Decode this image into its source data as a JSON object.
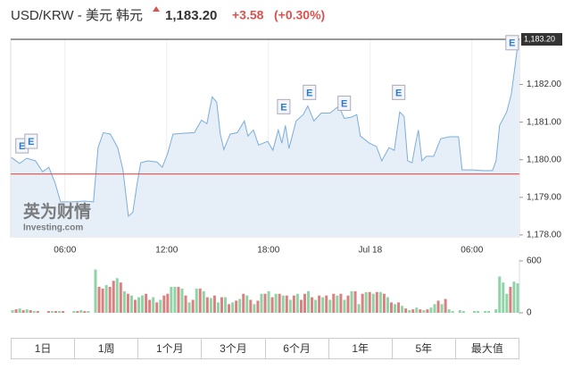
{
  "header": {
    "title": "USD/KRW - 美元 韩元",
    "change": "+3.58",
    "change_pct": "(+0.30%)"
  },
  "chart_data": [
    {
      "type": "area",
      "x": [
        2.84,
        3.32,
        3.74,
        4.26,
        4.68,
        5.05,
        5.42,
        5.74,
        6.37,
        7.16,
        7.68,
        7.95,
        8.26,
        8.68,
        9.11,
        9.42,
        9.74,
        10.0,
        10.26,
        10.47,
        10.89,
        11.42,
        11.74,
        12.05,
        12.37,
        12.89,
        13.63,
        14.05,
        14.37,
        14.68,
        14.95,
        15.16,
        15.37,
        15.74,
        16.16,
        16.58,
        16.79,
        17.11,
        17.42,
        17.95,
        18.26,
        18.58,
        18.79,
        19.0,
        19.21,
        19.63,
        20.05,
        20.32,
        20.68,
        21.11,
        21.63,
        22.16,
        22.47,
        22.89,
        23.21,
        23.42,
        23.95,
        24.37,
        24.68,
        25.11,
        25.42,
        25.74,
        26.0,
        26.21,
        26.47,
        26.68,
        26.84,
        27.05,
        27.32,
        27.74,
        28.16,
        28.68,
        29.21,
        29.42,
        30.05,
        30.68,
        31.21,
        31.42,
        31.63,
        32.05,
        32.32,
        32.53,
        32.74
      ],
      "series": [
        {
          "color": "#7aaedb",
          "fill": "#e6eef7",
          "values": [
            1180.06,
            1179.9,
            1180.04,
            1179.97,
            1179.68,
            1179.8,
            1179.38,
            1178.88,
            1178.88,
            1178.9,
            1178.88,
            1180.32,
            1180.72,
            1180.68,
            1180.32,
            1179.73,
            1178.5,
            1178.6,
            1179.38,
            1179.92,
            1179.97,
            1179.94,
            1179.8,
            1180.16,
            1180.68,
            1180.7,
            1180.72,
            1181.05,
            1180.96,
            1181.67,
            1181.53,
            1180.68,
            1180.27,
            1180.68,
            1180.72,
            1181.03,
            1180.63,
            1180.79,
            1180.39,
            1180.49,
            1180.25,
            1180.79,
            1180.44,
            1180.91,
            1180.3,
            1181.03,
            1181.2,
            1181.43,
            1181.03,
            1181.24,
            1181.24,
            1181.43,
            1181.1,
            1181.13,
            1181.2,
            1180.63,
            1180.44,
            1180.35,
            1179.97,
            1180.32,
            1180.25,
            1181.27,
            1181.15,
            1179.97,
            1179.92,
            1180.44,
            1180.79,
            1179.97,
            1180.09,
            1180.09,
            1180.56,
            1180.61,
            1180.61,
            1179.73,
            1179.73,
            1179.71,
            1179.71,
            1179.97,
            1180.91,
            1181.27,
            1181.74,
            1182.45,
            1183.2
          ]
        }
      ],
      "xlim": [
        2.8,
        32.8
      ],
      "ylim": [
        1177.95,
        1183.2
      ],
      "xticks": [
        {
          "value": 6,
          "label": "06:00"
        },
        {
          "value": 12,
          "label": "12:00"
        },
        {
          "value": 18,
          "label": "18:00"
        },
        {
          "value": 24,
          "label": "Jul 18"
        },
        {
          "value": 30,
          "label": "06:00"
        }
      ],
      "yticks": [
        {
          "value": 1178,
          "label": "1,178.00"
        },
        {
          "value": 1179,
          "label": "1,179.00"
        },
        {
          "value": 1180,
          "label": "1,180.00"
        },
        {
          "value": 1181,
          "label": "1,181.00"
        },
        {
          "value": 1182,
          "label": "1,182.00"
        }
      ],
      "last_price": {
        "value": 1183.2,
        "label": "1,183.20"
      },
      "prev_close": {
        "value": 1179.62,
        "color": "#d9534f"
      },
      "events": [
        {
          "x": 3.47,
          "y": 1180.37,
          "label": "E"
        },
        {
          "x": 4.0,
          "y": 1180.49,
          "label": "E"
        },
        {
          "x": 18.9,
          "y": 1181.41,
          "label": "E"
        },
        {
          "x": 20.42,
          "y": 1181.79,
          "label": "E"
        },
        {
          "x": 22.47,
          "y": 1181.5,
          "label": "E"
        },
        {
          "x": 25.68,
          "y": 1181.79,
          "label": "E"
        },
        {
          "x": 32.37,
          "y": 1183.11,
          "label": "E"
        }
      ],
      "watermark": [
        "英为财情",
        "Investing.com"
      ],
      "grid": true
    },
    {
      "type": "bar",
      "ylim": [
        0,
        620
      ],
      "yticks": [
        0,
        600
      ],
      "values": [
        30,
        40,
        50,
        30,
        40,
        30,
        20,
        20,
        0,
        0,
        20,
        20,
        20,
        20,
        20,
        0,
        0,
        20,
        20,
        30,
        20,
        20,
        0,
        500,
        300,
        280,
        320,
        300,
        370,
        400,
        350,
        250,
        220,
        200,
        150,
        180,
        200,
        220,
        150,
        180,
        120,
        150,
        200,
        220,
        300,
        300,
        300,
        280,
        200,
        120,
        150,
        280,
        280,
        250,
        180,
        170,
        200,
        120,
        180,
        180,
        100,
        120,
        140,
        160,
        220,
        200,
        150,
        100,
        140,
        220,
        220,
        250,
        180,
        220,
        220,
        200,
        200,
        150,
        200,
        220,
        150,
        220,
        250,
        180,
        150,
        200,
        180,
        200,
        150,
        220,
        200,
        220,
        150,
        200,
        250,
        250,
        100,
        220,
        240,
        240,
        220,
        240,
        240,
        220,
        180,
        120,
        100,
        120,
        80,
        50,
        30,
        40,
        60,
        40,
        30,
        40,
        60,
        100,
        140,
        100,
        160,
        40,
        20,
        0,
        30,
        20,
        0,
        0,
        20,
        20,
        0,
        20,
        20,
        0,
        40,
        420,
        350,
        220,
        300,
        360,
        340
      ],
      "colors": [
        "#8fd3a6",
        "#d98080",
        "#8fd3a6",
        "#d98080",
        "#8fd3a6",
        "#d98080",
        "#8fd3a6",
        "#d98080",
        "#8fd3a6",
        "#8fd3a6",
        "#d98080",
        "#8fd3a6",
        "#d98080",
        "#8fd3a6",
        "#d98080",
        "#8fd3a6",
        "#8fd3a6",
        "#8fd3a6",
        "#d98080",
        "#8fd3a6",
        "#d98080",
        "#8fd3a6",
        "#8fd3a6",
        "#8fd3a6",
        "#d98080",
        "#d98080",
        "#8fd3a6",
        "#d98080",
        "#d98080",
        "#8fd3a6",
        "#d98080",
        "#8fd3a6",
        "#d98080",
        "#8fd3a6",
        "#d98080",
        "#8fd3a6",
        "#8fd3a6",
        "#d98080",
        "#d98080",
        "#8fd3a6",
        "#d98080",
        "#8fd3a6",
        "#d98080",
        "#d98080",
        "#8fd3a6",
        "#8fd3a6",
        "#d98080",
        "#8fd3a6",
        "#d98080",
        "#8fd3a6",
        "#d98080",
        "#8fd3a6",
        "#d98080",
        "#8fd3a6",
        "#d98080",
        "#8fd3a6",
        "#d98080",
        "#8fd3a6",
        "#d98080",
        "#8fd3a6",
        "#d98080",
        "#8fd3a6",
        "#d98080",
        "#8fd3a6",
        "#d98080",
        "#8fd3a6",
        "#d98080",
        "#8fd3a6",
        "#d98080",
        "#8fd3a6",
        "#d98080",
        "#8fd3a6",
        "#d98080",
        "#8fd3a6",
        "#d98080",
        "#8fd3a6",
        "#d98080",
        "#8fd3a6",
        "#d98080",
        "#8fd3a6",
        "#d98080",
        "#d98080",
        "#8fd3a6",
        "#d98080",
        "#8fd3a6",
        "#d98080",
        "#8fd3a6",
        "#d98080",
        "#8fd3a6",
        "#d98080",
        "#8fd3a6",
        "#d98080",
        "#8fd3a6",
        "#d98080",
        "#8fd3a6",
        "#d98080",
        "#8fd3a6",
        "#d98080",
        "#8fd3a6",
        "#d98080",
        "#8fd3a6",
        "#d98080",
        "#8fd3a6",
        "#d98080",
        "#8fd3a6",
        "#d98080",
        "#8fd3a6",
        "#d98080",
        "#8fd3a6",
        "#d98080",
        "#8fd3a6",
        "#d98080",
        "#8fd3a6",
        "#d98080",
        "#8fd3a6",
        "#d98080",
        "#8fd3a6",
        "#8fd3a6",
        "#d98080",
        "#8fd3a6",
        "#d98080",
        "#8fd3a6",
        "#8fd3a6",
        "#d98080",
        "#8fd3a6",
        "#8fd3a6",
        "#8fd3a6",
        "#d98080",
        "#8fd3a6",
        "#8fd3a6",
        "#d98080",
        "#8fd3a6",
        "#8fd3a6",
        "#d98080",
        "#8fd3a6",
        "#8fd3a6",
        "#8fd3a6",
        "#8fd3a6",
        "#d98080",
        "#8fd3a6",
        "#8fd3a6"
      ]
    }
  ],
  "tabs": [
    "1日",
    "1周",
    "1个月",
    "3个月",
    "6个月",
    "1年",
    "5年",
    "最大值"
  ]
}
